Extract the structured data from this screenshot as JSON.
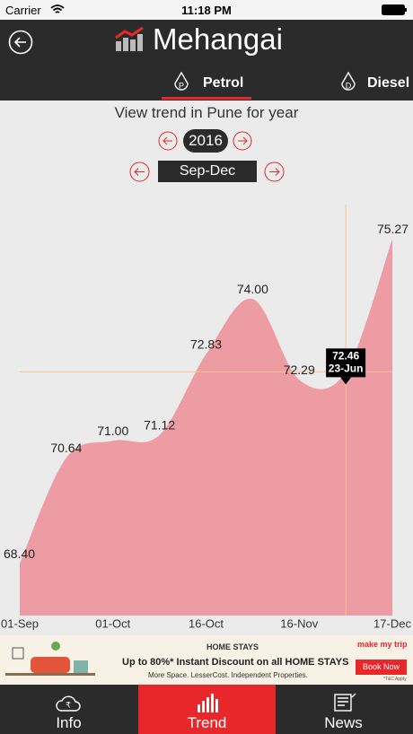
{
  "status_bar": {
    "carrier": "Carrier",
    "time": "11:18 PM"
  },
  "header": {
    "title": "Mehangai"
  },
  "tabs": [
    "Petrol",
    "Diesel"
  ],
  "controls": {
    "heading": "View trend in Pune for year",
    "year": "2016",
    "period": "Sep-Dec"
  },
  "chart_data": {
    "type": "area",
    "categories": [
      "01-Sep",
      null,
      "01-Oct",
      null,
      "16-Oct",
      null,
      "16-Nov",
      null,
      "17-Dec"
    ],
    "values": [
      68.4,
      70.64,
      71.0,
      71.12,
      72.83,
      74.0,
      72.29,
      72.46,
      75.27
    ],
    "value_labels": [
      "68.40",
      "70.64",
      "71.00",
      "71.12",
      "72.83",
      "74.00",
      "72.29",
      "72.46",
      "75.27"
    ],
    "tooltip_date": "23-Jun",
    "ylim": [
      67.3,
      76.0
    ],
    "color": "#ee9ca4"
  },
  "ad": {
    "tag": "HOME STAYS",
    "headline": "Up to 80%* Instant Discount on all HOME STAYS",
    "sub": "More Space. LesserCost. Independent Properties.",
    "brand": "make my trip",
    "button": "Book Now",
    "note": "*T&C Apply"
  },
  "nav": [
    "Info",
    "Trend",
    "News"
  ]
}
